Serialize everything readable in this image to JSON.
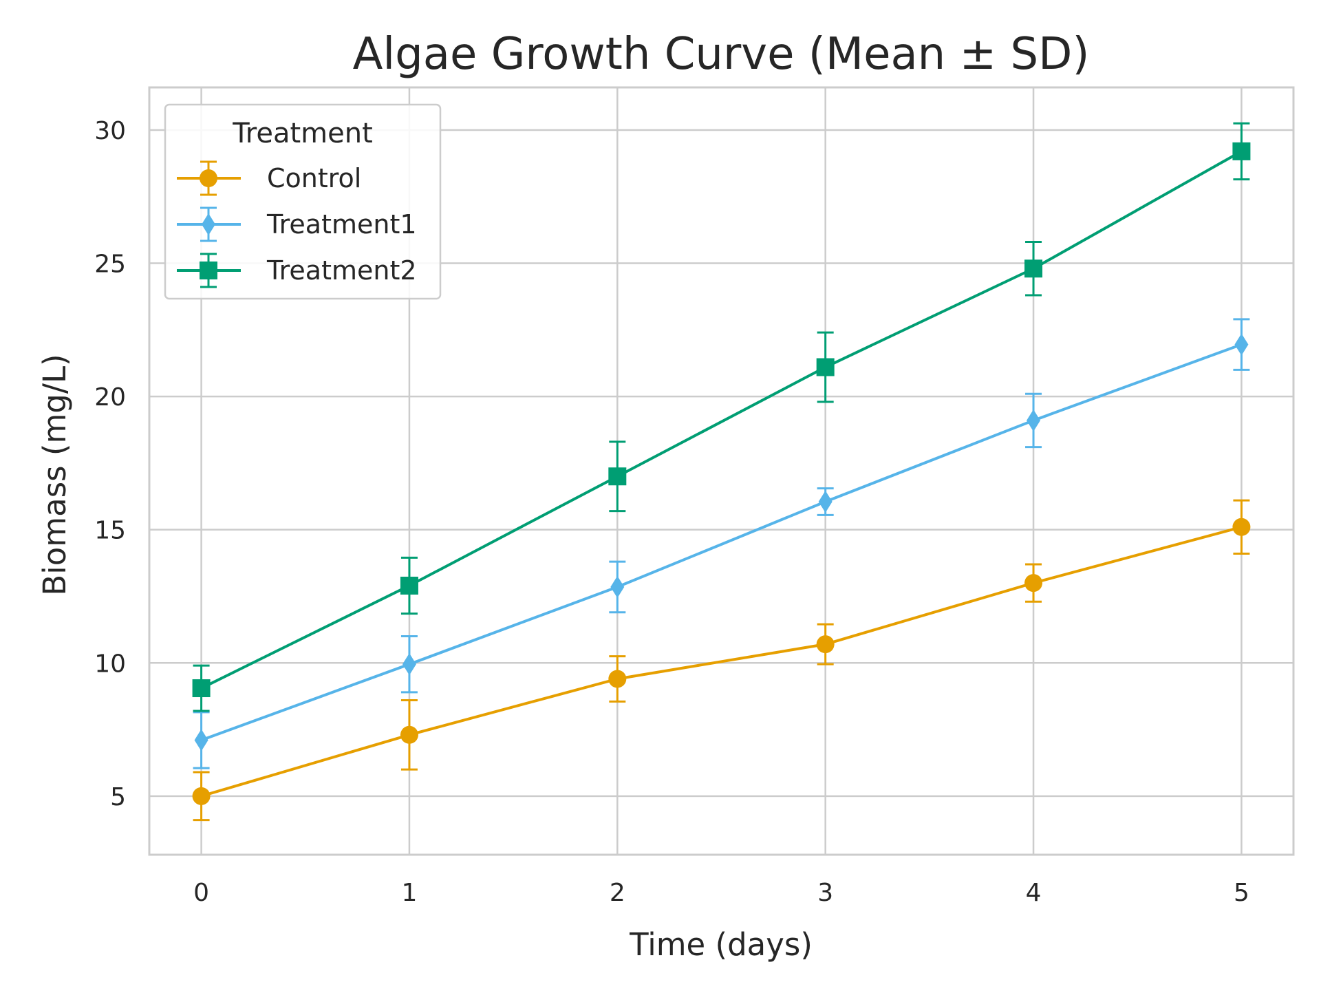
{
  "chart_data": {
    "type": "line",
    "title": "Algae Growth Curve (Mean ± SD)",
    "xlabel": "Time (days)",
    "ylabel": "Biomass (mg/L)",
    "x": [
      0,
      1,
      2,
      3,
      4,
      5
    ],
    "x_ticks": [
      "0",
      "1",
      "2",
      "3",
      "4",
      "5"
    ],
    "y_ticks": [
      "5",
      "10",
      "15",
      "20",
      "25",
      "30"
    ],
    "xlim": [
      -0.25,
      5.25
    ],
    "ylim": [
      2.8,
      31.6
    ],
    "grid": true,
    "legend": {
      "title": "Treatment",
      "position": "top-left"
    },
    "error_bars": "SD",
    "series": [
      {
        "name": "Control",
        "color": "#E69F00",
        "marker": "circle",
        "values": [
          5.0,
          7.3,
          9.4,
          10.7,
          13.0,
          15.1
        ],
        "sd": [
          0.9,
          1.3,
          0.85,
          0.75,
          0.7,
          1.0
        ]
      },
      {
        "name": "Treatment1",
        "color": "#56B4E9",
        "marker": "diamond",
        "values": [
          7.1,
          9.95,
          12.85,
          16.05,
          19.1,
          21.95
        ],
        "sd": [
          1.05,
          1.05,
          0.95,
          0.5,
          1.0,
          0.95
        ]
      },
      {
        "name": "Treatment2",
        "color": "#009E73",
        "marker": "square",
        "values": [
          9.05,
          12.9,
          17.0,
          21.1,
          24.8,
          29.2
        ],
        "sd": [
          0.85,
          1.05,
          1.3,
          1.3,
          1.0,
          1.05
        ]
      }
    ]
  }
}
